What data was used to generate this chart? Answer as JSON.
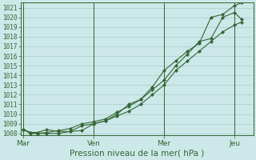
{
  "xlabel": "Pression niveau de la mer( hPa )",
  "bg_color": "#cce8e8",
  "grid_color": "#aacccc",
  "line_color": "#336633",
  "ylim_bottom": 1007.8,
  "ylim_top": 1021.5,
  "yticks": [
    1008,
    1009,
    1010,
    1011,
    1012,
    1013,
    1014,
    1015,
    1016,
    1017,
    1018,
    1019,
    1020,
    1021
  ],
  "xtick_labels": [
    "Mar",
    "Ven",
    "Mer",
    "Jeu"
  ],
  "xtick_positions": [
    0.0,
    3.0,
    6.0,
    9.0
  ],
  "xlim_left": -0.1,
  "xlim_right": 9.8,
  "line1_x": [
    0.0,
    0.3,
    0.6,
    1.0,
    1.5,
    2.0,
    2.5,
    3.0,
    3.5,
    4.0,
    4.5,
    5.0,
    5.5,
    6.0,
    6.5,
    7.0,
    7.5,
    8.0,
    8.5,
    9.0,
    9.3
  ],
  "line1_y": [
    1008.4,
    1008.1,
    1008.1,
    1008.4,
    1008.2,
    1008.2,
    1008.3,
    1009.0,
    1009.3,
    1010.0,
    1011.0,
    1011.5,
    1012.8,
    1014.5,
    1015.5,
    1016.5,
    1017.3,
    1020.0,
    1020.3,
    1021.2,
    1021.5
  ],
  "line2_x": [
    0.0,
    0.3,
    0.6,
    1.0,
    1.5,
    2.0,
    2.5,
    3.0,
    3.5,
    4.0,
    4.5,
    5.0,
    5.5,
    6.0,
    6.5,
    7.0,
    7.5,
    8.0,
    8.5,
    9.0,
    9.3
  ],
  "line2_y": [
    1008.4,
    1008.0,
    1008.0,
    1008.1,
    1008.3,
    1008.5,
    1009.0,
    1009.2,
    1009.5,
    1010.2,
    1010.8,
    1011.5,
    1012.5,
    1013.5,
    1015.0,
    1016.2,
    1017.5,
    1017.8,
    1020.0,
    1020.5,
    1019.8
  ],
  "line3_x": [
    0.0,
    0.3,
    0.6,
    1.0,
    1.5,
    2.0,
    2.5,
    3.0,
    3.5,
    4.0,
    4.5,
    5.0,
    5.5,
    6.0,
    6.5,
    7.0,
    7.5,
    8.0,
    8.5,
    9.0,
    9.3
  ],
  "line3_y": [
    1008.4,
    1008.1,
    1008.0,
    1008.0,
    1008.0,
    1008.2,
    1008.8,
    1009.0,
    1009.3,
    1009.8,
    1010.3,
    1011.0,
    1012.0,
    1013.0,
    1014.5,
    1015.5,
    1016.5,
    1017.5,
    1018.5,
    1019.2,
    1019.5
  ],
  "vline_color": "#336633",
  "xlabel_fontsize": 7.5,
  "ytick_fontsize": 5.5,
  "xtick_fontsize": 6.5
}
